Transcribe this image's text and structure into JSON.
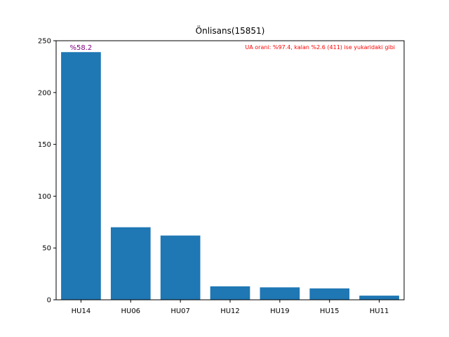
{
  "chart_data": {
    "type": "bar",
    "title": "Önlisans(15851)",
    "xlabel": "",
    "ylabel": "",
    "categories": [
      "HU14",
      "HU06",
      "HU07",
      "HU12",
      "HU19",
      "HU15",
      "HU11"
    ],
    "values": [
      239,
      70,
      62,
      13,
      12,
      11,
      4
    ],
    "ylim": [
      0,
      250
    ],
    "yticks": [
      0,
      50,
      100,
      150,
      200,
      250
    ],
    "bar_color": "#1f77b4",
    "annotations": [
      {
        "text": "%58.2",
        "category": "HU14",
        "color": "#800080"
      },
      {
        "text": "UA orani: %97.4, kalan %2.6 (411) ise yukaridaki gibi",
        "color": "#ff0000"
      }
    ],
    "grid": false,
    "legend": "none"
  }
}
